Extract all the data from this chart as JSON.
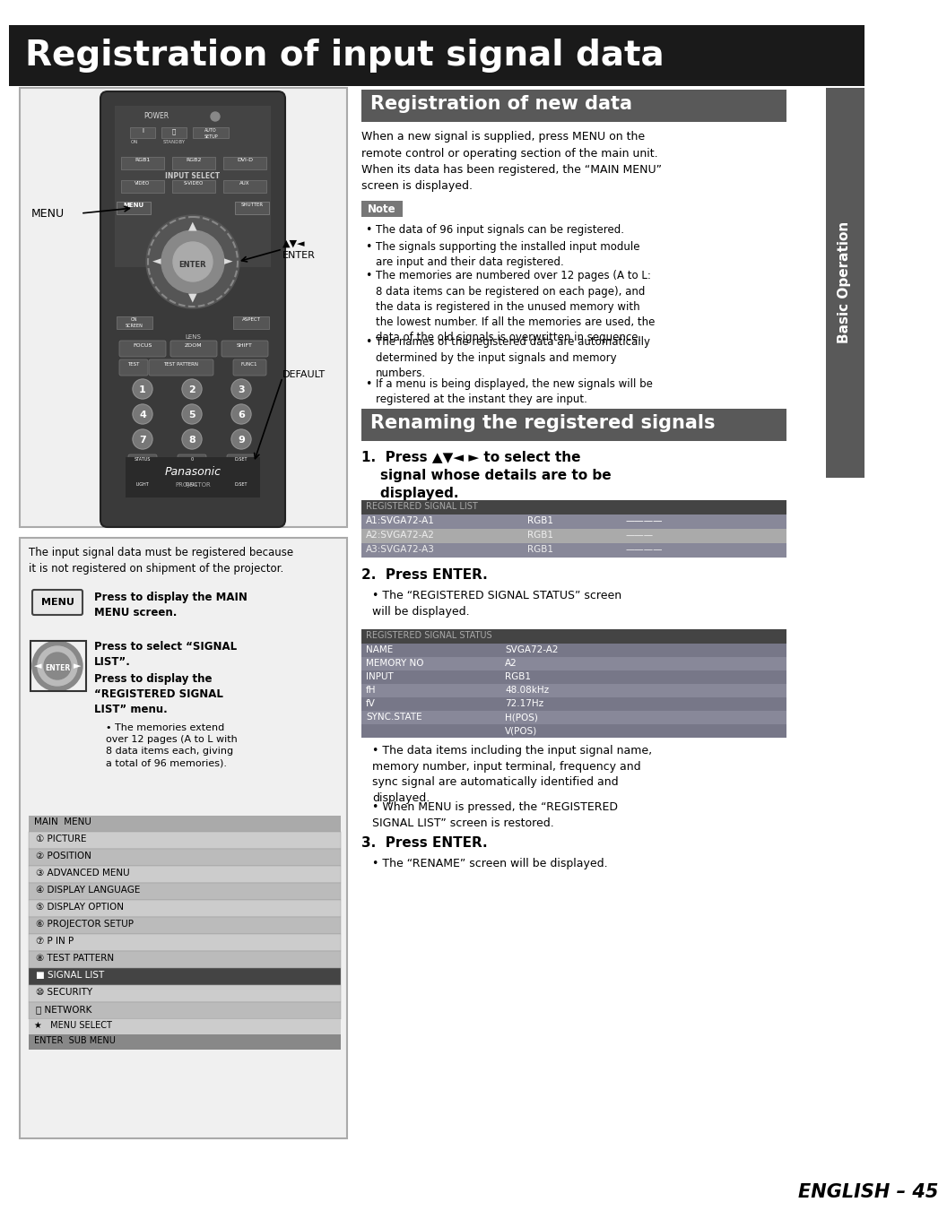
{
  "title": "Registration of input signal data",
  "title_bg": "#1a1a1a",
  "title_color": "#ffffff",
  "section1_title": "Registration of new data",
  "section1_bg": "#595959",
  "section1_color": "#ffffff",
  "section2_title": "Renaming the registered signals",
  "section2_bg": "#595959",
  "section2_color": "#ffffff",
  "sidebar_bg": "#595959",
  "sidebar_color": "#ffffff",
  "sidebar_text": "Basic Operation",
  "footer_text": "ENGLISH – 45",
  "reg_new_body": "When a new signal is supplied, press MENU on the\nremote control or operating section of the main unit.\nWhen its data has been registered, the “MAIN MENU”\nscreen is displayed.",
  "note_label": "Note",
  "note_bg": "#777777",
  "note_color": "#ffffff",
  "note_bullets": [
    "The data of 96 input signals can be registered.",
    "The signals supporting the installed input module\nare input and their data registered.",
    "The memories are numbered over 12 pages (A to L:\n8 data items can be registered on each page), and\nthe data is registered in the unused memory with\nthe lowest number. If all the memories are used, the\ndata of the old signals is overwritten in sequence.",
    "The names of the registered data are automatically\ndetermined by the input signals and memory\nnumbers.",
    "If a menu is being displayed, the new signals will be\nregistered at the instant they are input."
  ],
  "step1": "1.  Press ▲▼◄ ► to select the\n    signal whose details are to be\n    displayed.",
  "step2_head": "2.  Press ENTER.",
  "step2_body": "The “REGISTERED SIGNAL STATUS” screen\nwill be displayed.",
  "step3_head": "3.  Press ENTER.",
  "step3_body": "The “RENAME” screen will be displayed.",
  "table1_header": "REGISTERED SIGNAL LIST",
  "table1_header_bg": "#444444",
  "table1_rows": [
    [
      "A1:SVGA72-A1",
      "RGB1",
      "————"
    ],
    [
      "A2:SVGA72-A2",
      "RGB1",
      "———"
    ],
    [
      "A3:SVGA72-A3",
      "RGB1",
      "————"
    ]
  ],
  "table1_row_colors": [
    "#888899",
    "#aaaaaa",
    "#888899"
  ],
  "table2_header": "REGISTERED SIGNAL STATUS",
  "table2_header_bg": "#444444",
  "table2_rows": [
    [
      "NAME",
      "SVGA72-A2"
    ],
    [
      "MEMORY NO",
      "A2"
    ],
    [
      "INPUT",
      "RGB1"
    ],
    [
      "fH",
      "48.08kHz"
    ],
    [
      "fV",
      "72.17Hz"
    ],
    [
      "SYNC.STATE",
      "H(POS)"
    ],
    [
      "",
      "V(POS)"
    ]
  ],
  "table2_row_colors": [
    "#777788",
    "#888899",
    "#777788",
    "#888899",
    "#777788",
    "#888899",
    "#777788"
  ],
  "step2_extra1": "The data items including the input signal name,\nmemory number, input terminal, frequency and\nsync signal are automatically identified and\ndisplayed.",
  "step2_extra2": "When MENU is pressed, the “REGISTERED\nSIGNAL LIST” screen is restored.",
  "left_caption": "The input signal data must be registered because\nit is not registered on shipment of the projector.",
  "instr1_bold": "Press to display the MAIN\nMENU screen.",
  "instr2_bold": "Press to select “SIGNAL\nLIST”.",
  "instr3_bold": "Press to display the\n“REGISTERED SIGNAL\nLIST” menu.",
  "instr3_bullet": "The memories extend\nover 12 pages (A to L with\n8 data items each, giving\na total of 96 memories).",
  "menu_header": "MAIN  MENU",
  "menu_header_bg": "#aaaaaa",
  "menu_items": [
    [
      "① PICTURE",
      "#cccccc",
      "#000000"
    ],
    [
      "② POSITION",
      "#bbbbbb",
      "#000000"
    ],
    [
      "③ ADVANCED MENU",
      "#cccccc",
      "#000000"
    ],
    [
      "④ DISPLAY LANGUAGE",
      "#bbbbbb",
      "#000000"
    ],
    [
      "⑤ DISPLAY OPTION",
      "#cccccc",
      "#000000"
    ],
    [
      "⑥ PROJECTOR SETUP",
      "#bbbbbb",
      "#000000"
    ],
    [
      "⑦ P IN P",
      "#cccccc",
      "#000000"
    ],
    [
      "⑧ TEST PATTERN",
      "#bbbbbb",
      "#000000"
    ],
    [
      "■ SIGNAL LIST",
      "#444444",
      "#ffffff"
    ],
    [
      "⑩ SECURITY",
      "#cccccc",
      "#000000"
    ],
    [
      "⑪ NETWORK",
      "#bbbbbb",
      "#000000"
    ]
  ],
  "menu_footer1": "★   MENU SELECT",
  "menu_footer2": "ENTER  SUB MENU",
  "menu_footer1_bg": "#cccccc",
  "menu_footer2_bg": "#888888"
}
